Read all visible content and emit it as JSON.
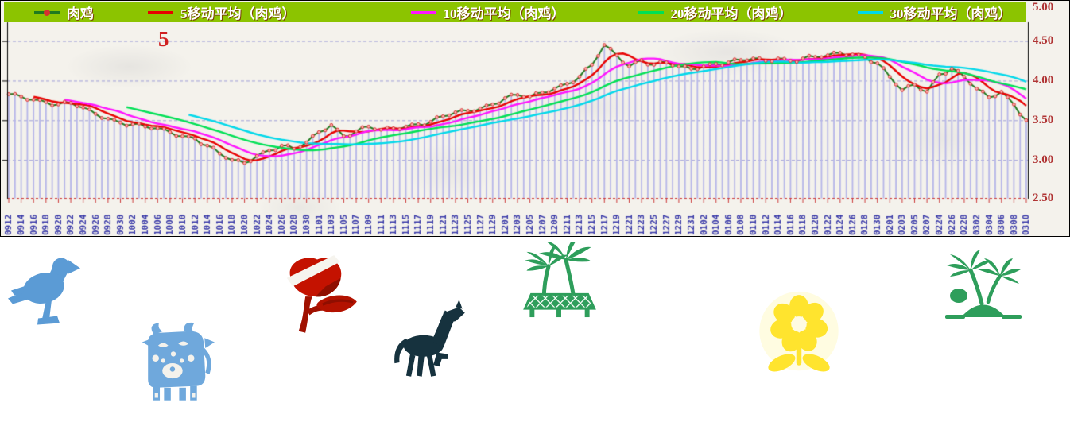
{
  "chart": {
    "annotation_label": "5"
  },
  "colors": {
    "legend_bar": "#8cc400",
    "grid": "#9f9fd8",
    "bars": "#b6b6e8",
    "baseline": "#cc3a3a",
    "x_labels": "#3939a8",
    "y_labels": "#b03434",
    "axis": "#000000",
    "annotation": "#d02020"
  },
  "chart_data": {
    "type": "line",
    "title": "",
    "categories": [
      "0912",
      "0914",
      "0916",
      "0918",
      "0920",
      "0922",
      "0924",
      "0926",
      "0928",
      "0930",
      "1002",
      "1004",
      "1006",
      "1008",
      "1010",
      "1012",
      "1014",
      "1016",
      "1018",
      "1020",
      "1022",
      "1024",
      "1026",
      "1028",
      "1030",
      "1101",
      "1103",
      "1105",
      "1107",
      "1109",
      "1111",
      "1113",
      "1115",
      "1117",
      "1119",
      "1121",
      "1123",
      "1125",
      "1127",
      "1129",
      "1201",
      "1203",
      "1205",
      "1207",
      "1209",
      "1211",
      "1213",
      "1215",
      "1217",
      "1219",
      "1221",
      "1223",
      "1225",
      "1227",
      "1229",
      "1231",
      "0102",
      "0104",
      "0106",
      "0108",
      "0110",
      "0112",
      "0114",
      "0116",
      "0118",
      "0120",
      "0122",
      "0124",
      "0126",
      "0128",
      "0130",
      "0201",
      "0203",
      "0205",
      "0207",
      "0224",
      "0226",
      "0228",
      "0302",
      "0304",
      "0306",
      "0308",
      "0310"
    ],
    "series": [
      {
        "name": "肉鸡",
        "color": "#1f7a1f",
        "marker_color": "#d63030",
        "values": [
          3.83,
          3.8,
          3.76,
          3.73,
          3.7,
          3.72,
          3.66,
          3.58,
          3.52,
          3.47,
          3.45,
          3.42,
          3.4,
          3.35,
          3.3,
          3.27,
          3.18,
          3.08,
          3.0,
          2.96,
          3.05,
          3.12,
          3.18,
          3.14,
          3.22,
          3.35,
          3.44,
          3.3,
          3.36,
          3.42,
          3.38,
          3.4,
          3.42,
          3.45,
          3.48,
          3.55,
          3.6,
          3.62,
          3.65,
          3.7,
          3.78,
          3.82,
          3.8,
          3.85,
          3.9,
          3.96,
          4.05,
          4.2,
          4.45,
          4.32,
          4.18,
          4.26,
          4.2,
          4.23,
          4.18,
          4.15,
          4.18,
          4.21,
          4.23,
          4.26,
          4.28,
          4.25,
          4.28,
          4.25,
          4.28,
          4.3,
          4.32,
          4.35,
          4.33,
          4.3,
          4.22,
          4.05,
          3.88,
          3.95,
          3.86,
          4.08,
          4.15,
          4.05,
          3.9,
          3.79,
          3.86,
          3.7,
          3.5
        ]
      },
      {
        "name": "5移动平均（肉鸡）",
        "color": "#e80000",
        "moving_average_window": 5
      },
      {
        "name": "10移动平均（肉鸡）",
        "color": "#ff14ff",
        "moving_average_window": 10
      },
      {
        "name": "20移动平均（肉鸡）",
        "color": "#00e055",
        "moving_average_window": 20
      },
      {
        "name": "30移动平均（肉鸡）",
        "color": "#00d8ea",
        "moving_average_window": 30
      }
    ],
    "ylim": [
      2.5,
      5.0
    ],
    "yticks": [
      "5.00",
      "4.50",
      "4.00",
      "3.50",
      "3.00",
      "2.50"
    ],
    "grid": true,
    "legend_position": "top",
    "x_label_rotation": -90
  },
  "decorations": {
    "items": [
      {
        "icon": "dove-clipart",
        "color": "#5b9bd5"
      },
      {
        "icon": "ox-papercut-clipart",
        "color": "#6fa8dc"
      },
      {
        "icon": "rose-clipart",
        "color": "#c41200"
      },
      {
        "icon": "horse-clipart",
        "color": "#16323e"
      },
      {
        "icon": "palm-hammock-clipart",
        "color": "#2e9e5b"
      },
      {
        "icon": "sunflower-clipart",
        "color": "#ffe42e"
      },
      {
        "icon": "palm-island-clipart",
        "color": "#2e9e5b"
      }
    ]
  }
}
